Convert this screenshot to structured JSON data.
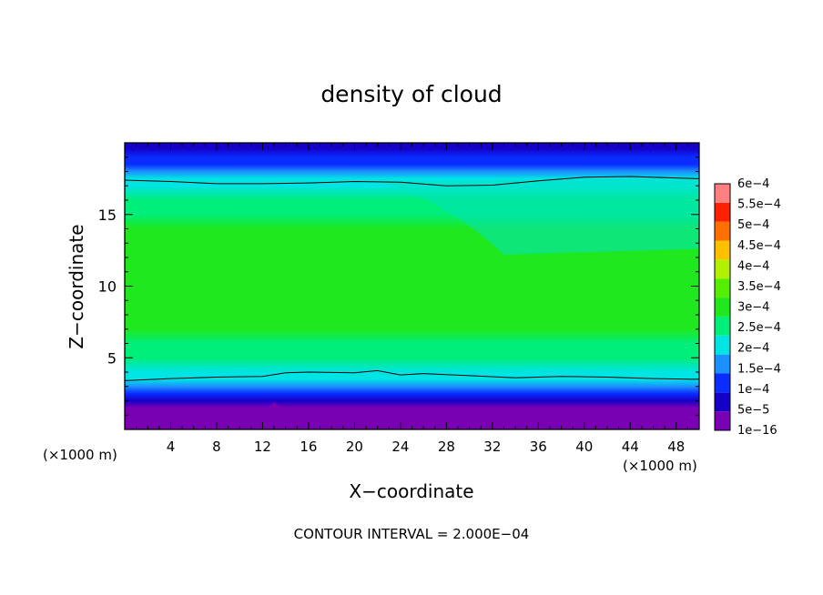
{
  "chart_data": {
    "type": "heatmap",
    "title": "density of cloud",
    "xlabel": "X−coordinate",
    "ylabel": "Z−coordinate",
    "x_unit": "(×1000 m)",
    "y_unit": "(×1000 m)",
    "xlim": [
      0,
      50
    ],
    "ylim": [
      0,
      20
    ],
    "x_ticks": [
      4,
      8,
      12,
      16,
      20,
      24,
      28,
      32,
      36,
      40,
      44,
      48
    ],
    "y_ticks": [
      5,
      10,
      15
    ],
    "footer": "CONTOUR INTERVAL = 2.000E−04",
    "colorbar": {
      "labels": [
        "1e−16",
        "5e−5",
        "1e−4",
        "1.5e−4",
        "2e−4",
        "2.5e−4",
        "3e−4",
        "3.5e−4",
        "4e−4",
        "4.5e−4",
        "5e−4",
        "5.5e−4",
        "6e−4"
      ],
      "levels": [
        1e-16,
        5e-05,
        0.0001,
        0.00015,
        0.0002,
        0.00025,
        0.0003,
        0.00035,
        0.0004,
        0.00045,
        0.0005,
        0.00055,
        0.0006
      ],
      "colors": [
        "#7a00b4",
        "#1500c8",
        "#0a2cff",
        "#1c90ff",
        "#00e4e4",
        "#00ee7a",
        "#1fe81f",
        "#55ee00",
        "#b0f000",
        "#ffc000",
        "#ff7000",
        "#ff2000",
        "#ff8080"
      ]
    },
    "profile_z": [
      1,
      1.5,
      2,
      2.5,
      3,
      3.5,
      4,
      5,
      6,
      7,
      8,
      9,
      10,
      11,
      12,
      13,
      14,
      15,
      16,
      17,
      17.5,
      18,
      18.5,
      19,
      19.6
    ],
    "profile_density": [
      0,
      4e-05,
      8e-05,
      0.00012,
      0.00016,
      0.0002,
      0.000225,
      0.000255,
      0.00028,
      0.0003,
      0.00031,
      0.00032,
      0.00033,
      0.00033,
      0.00033,
      0.00032,
      0.000305,
      0.000285,
      0.00026,
      0.00023,
      0.0002,
      0.00016,
      0.00013,
      0.0001,
      7e-05
    ],
    "contour_2e-4_top": {
      "x": [
        0,
        4,
        8,
        12,
        16,
        20,
        24,
        28,
        32,
        36,
        40,
        44,
        48,
        50
      ],
      "z": [
        17.4,
        17.3,
        17.15,
        17.15,
        17.2,
        17.3,
        17.25,
        17.0,
        17.05,
        17.35,
        17.6,
        17.65,
        17.55,
        17.5
      ]
    },
    "contour_2e-4_bottom": {
      "x": [
        0,
        4,
        8,
        12,
        14,
        16,
        20,
        22,
        24,
        26,
        30,
        34,
        38,
        42,
        46,
        50
      ],
      "z": [
        3.4,
        3.55,
        3.65,
        3.7,
        3.95,
        4.0,
        3.95,
        4.1,
        3.8,
        3.9,
        3.75,
        3.6,
        3.7,
        3.65,
        3.55,
        3.5
      ]
    }
  }
}
